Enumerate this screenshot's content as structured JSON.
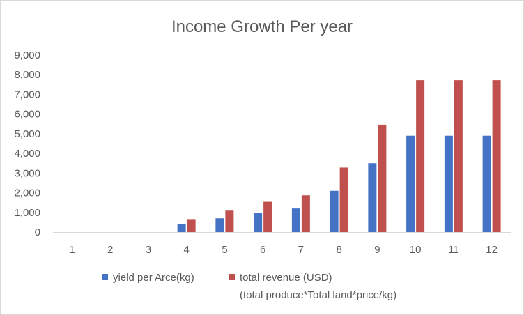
{
  "chart_data": {
    "type": "bar",
    "title": "Income Growth Per year",
    "xlabel": "",
    "ylabel": "",
    "categories": [
      "1",
      "2",
      "3",
      "4",
      "5",
      "6",
      "7",
      "8",
      "9",
      "10",
      "11",
      "12"
    ],
    "series": [
      {
        "name": "yield per Arce(kg)",
        "color": "#4472c4",
        "values": [
          0,
          0,
          0,
          420,
          700,
          980,
          1200,
          2100,
          3500,
          4900,
          4900,
          4900
        ]
      },
      {
        "name": "total revenue (USD)",
        "name_line2": "(total produce*Total land*price/kg)",
        "color": "#c0504d",
        "values": [
          0,
          0,
          0,
          660,
          1090,
          1540,
          1870,
          3280,
          5460,
          7720,
          7720,
          7720
        ]
      }
    ],
    "ylim": [
      0,
      9000
    ],
    "yticks": [
      "0",
      "1,000",
      "2,000",
      "3,000",
      "4,000",
      "5,000",
      "6,000",
      "7,000",
      "8,000",
      "9,000"
    ],
    "grid": false,
    "legend_position": "bottom"
  }
}
